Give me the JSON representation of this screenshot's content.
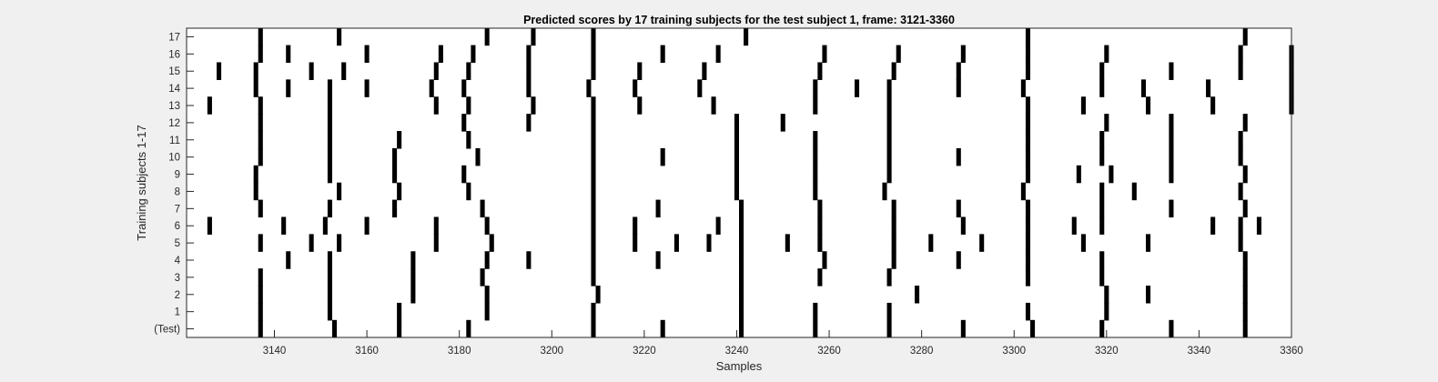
{
  "chart_data": {
    "type": "heatmap",
    "title": "Predicted scores by 17 training subjects for the test subject 1, frame: 3121-3360",
    "xlabel": "Samples",
    "ylabel": "Training subjects 1-17",
    "xlim": [
      3121,
      3360
    ],
    "xticks": [
      3140,
      3160,
      3180,
      3200,
      3220,
      3240,
      3260,
      3280,
      3300,
      3320,
      3340,
      3360
    ],
    "rows": [
      "(Test)",
      "1",
      "2",
      "3",
      "4",
      "5",
      "6",
      "7",
      "8",
      "9",
      "10",
      "11",
      "12",
      "13",
      "14",
      "15",
      "16",
      "17"
    ],
    "mark_color": "#000000",
    "background_color": "#ffffff",
    "series": [
      {
        "row": "(Test)",
        "x": [
          3137,
          3153,
          3167,
          3182,
          3209,
          3224,
          3241,
          3257,
          3273,
          3289,
          3304,
          3319,
          3334,
          3350
        ]
      },
      {
        "row": "1",
        "x": [
          3137,
          3152,
          3167,
          3186,
          3209,
          3241,
          3257,
          3273,
          3303,
          3320,
          3350
        ]
      },
      {
        "row": "2",
        "x": [
          3137,
          3152,
          3170,
          3186,
          3210,
          3241,
          3279,
          3320,
          3329,
          3350
        ]
      },
      {
        "row": "3",
        "x": [
          3137,
          3152,
          3170,
          3185,
          3209,
          3241,
          3258,
          3273,
          3303,
          3319,
          3350
        ]
      },
      {
        "row": "4",
        "x": [
          3143,
          3152,
          3170,
          3186,
          3195,
          3209,
          3223,
          3241,
          3259,
          3274,
          3288,
          3303,
          3319,
          3350
        ]
      },
      {
        "row": "5",
        "x": [
          3137,
          3148,
          3154,
          3175,
          3187,
          3209,
          3218,
          3227,
          3234,
          3241,
          3251,
          3258,
          3274,
          3282,
          3293,
          3303,
          3315,
          3329,
          3349
        ]
      },
      {
        "row": "6",
        "x": [
          3126,
          3142,
          3151,
          3160,
          3175,
          3186,
          3209,
          3218,
          3236,
          3241,
          3258,
          3274,
          3289,
          3303,
          3313,
          3319,
          3343,
          3349,
          3353
        ]
      },
      {
        "row": "7",
        "x": [
          3137,
          3152,
          3166,
          3185,
          3209,
          3223,
          3241,
          3258,
          3274,
          3288,
          3303,
          3319,
          3334,
          3350
        ]
      },
      {
        "row": "8",
        "x": [
          3136,
          3154,
          3167,
          3182,
          3209,
          3240,
          3257,
          3272,
          3302,
          3319,
          3326,
          3349
        ]
      },
      {
        "row": "9",
        "x": [
          3136,
          3152,
          3166,
          3181,
          3209,
          3240,
          3257,
          3273,
          3303,
          3314,
          3321,
          3334,
          3350
        ]
      },
      {
        "row": "10",
        "x": [
          3137,
          3152,
          3166,
          3184,
          3209,
          3224,
          3240,
          3257,
          3273,
          3288,
          3303,
          3319,
          3334,
          3349
        ]
      },
      {
        "row": "11",
        "x": [
          3137,
          3152,
          3167,
          3182,
          3209,
          3240,
          3257,
          3273,
          3303,
          3319,
          3334,
          3349
        ]
      },
      {
        "row": "12",
        "x": [
          3137,
          3152,
          3181,
          3195,
          3209,
          3240,
          3250,
          3273,
          3303,
          3320,
          3334,
          3350
        ]
      },
      {
        "row": "13",
        "x": [
          3126,
          3137,
          3152,
          3175,
          3182,
          3196,
          3209,
          3219,
          3235,
          3257,
          3273,
          3303,
          3315,
          3329,
          3343,
          3360
        ]
      },
      {
        "row": "14",
        "x": [
          3136,
          3143,
          3152,
          3160,
          3174,
          3181,
          3195,
          3208,
          3218,
          3232,
          3257,
          3266,
          3273,
          3288,
          3302,
          3319,
          3328,
          3342,
          3360
        ]
      },
      {
        "row": "15",
        "x": [
          3128,
          3136,
          3148,
          3155,
          3175,
          3182,
          3195,
          3209,
          3219,
          3233,
          3258,
          3274,
          3288,
          3303,
          3319,
          3334,
          3349,
          3360
        ]
      },
      {
        "row": "16",
        "x": [
          3137,
          3143,
          3160,
          3176,
          3183,
          3195,
          3209,
          3224,
          3236,
          3259,
          3275,
          3289,
          3303,
          3320,
          3349,
          3360
        ]
      },
      {
        "row": "17",
        "x": [
          3137,
          3154,
          3186,
          3196,
          3209,
          3242,
          3303,
          3350
        ]
      }
    ]
  }
}
